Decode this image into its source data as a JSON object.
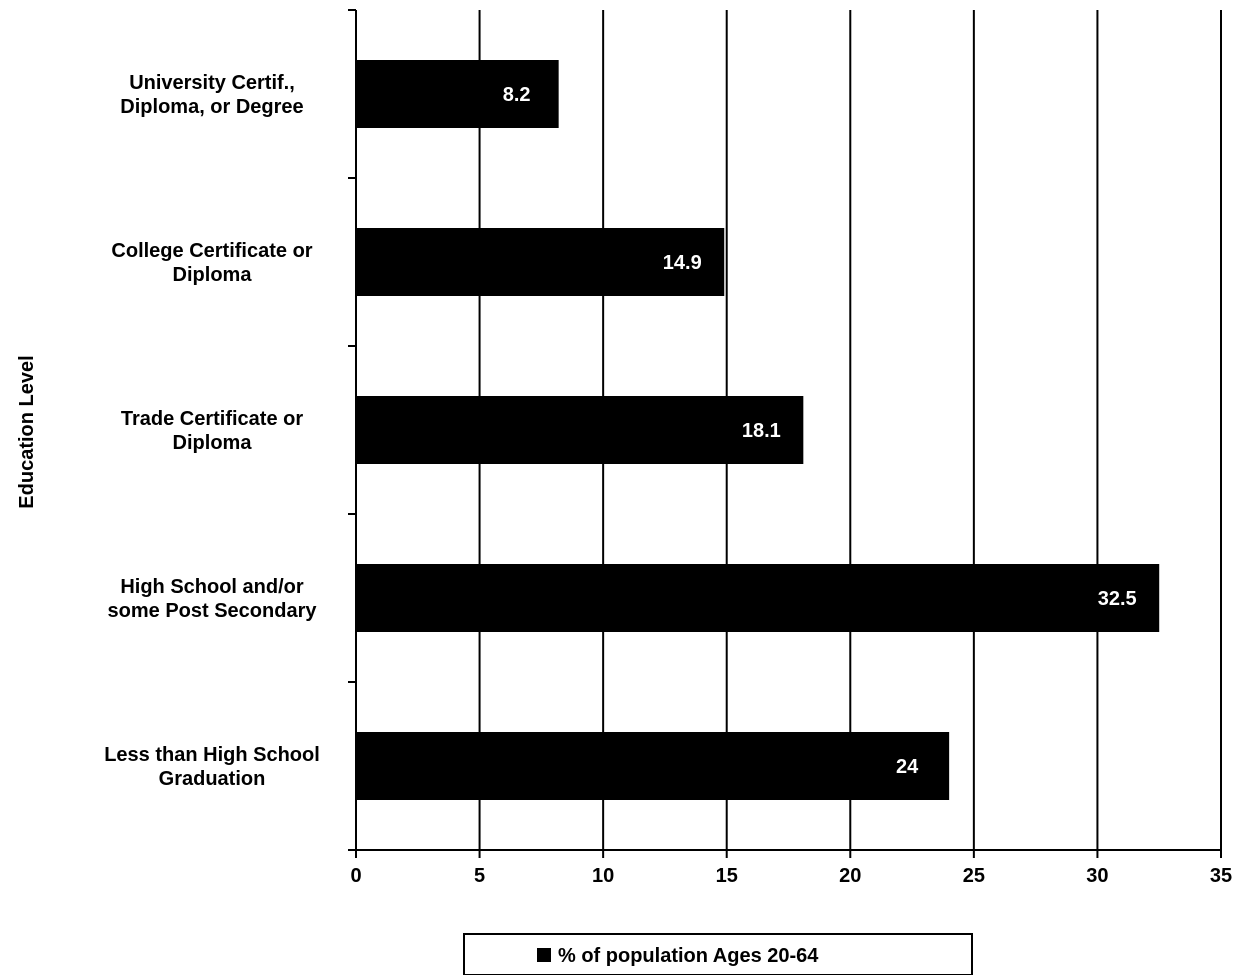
{
  "chart_data": {
    "type": "bar",
    "orientation": "horizontal",
    "categories": [
      [
        "University Certif.,",
        "Diploma, or Degree"
      ],
      [
        "College Certificate or",
        "Diploma"
      ],
      [
        "Trade Certificate or",
        "Diploma"
      ],
      [
        "High School and/or",
        "some Post Secondary"
      ],
      [
        "Less than High School",
        "Graduation"
      ]
    ],
    "series": [
      {
        "name": "% of population Ages 20-64",
        "values": [
          8.2,
          14.9,
          18.1,
          32.5,
          24
        ]
      }
    ],
    "data_labels": [
      "8.2",
      "14.9",
      "18.1",
      "32.5",
      "24"
    ],
    "ylabel": "Education Level",
    "xlabel": "",
    "xlim": [
      0,
      35
    ],
    "xticks": [
      0,
      5,
      10,
      15,
      20,
      25,
      30,
      35
    ],
    "xtick_labels": [
      "0",
      "5",
      "10",
      "15",
      "20",
      "25",
      "30",
      "35"
    ],
    "grid": "vertical",
    "legend": {
      "position": "bottom",
      "label": "% of population Ages 20-64"
    },
    "colors": {
      "bar": "#000000",
      "bar_label": "#ffffff",
      "axis": "#000000",
      "background": "#ffffff"
    }
  }
}
